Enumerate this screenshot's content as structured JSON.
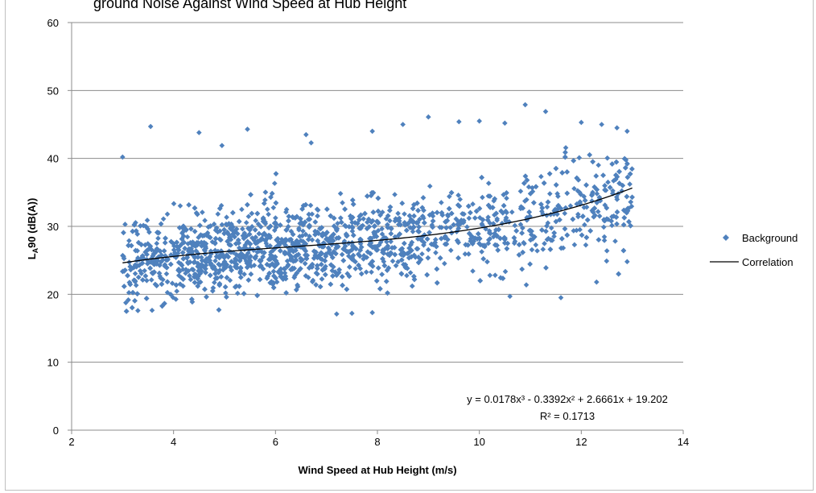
{
  "chart_data": {
    "type": "scatter",
    "title_fragment": "ground Noise Against Wind Speed at Hub Height",
    "xlabel": "Wind Speed at Hub Height (m/s)",
    "ylabel": {
      "main": "L",
      "sub": "A",
      "rest": "90 (dB(A))"
    },
    "xlim": [
      2,
      14
    ],
    "ylim": [
      0,
      60
    ],
    "x_ticks": [
      "2",
      "4",
      "6",
      "8",
      "10",
      "12",
      "14"
    ],
    "y_ticks": [
      "0",
      "10",
      "20",
      "30",
      "40",
      "50",
      "60"
    ],
    "grid": "horizontal",
    "legend_position": "right",
    "series": [
      {
        "name": "Background",
        "kind": "scatter",
        "marker": "diamond",
        "color": "#4f81bd",
        "x_range": [
          3,
          13
        ],
        "approx_point_count": 3000,
        "sample_points": [
          [
            3.0,
            40.2
          ],
          [
            3.55,
            44.7
          ],
          [
            4.5,
            43.8
          ],
          [
            5.45,
            44.3
          ],
          [
            4.95,
            41.9
          ],
          [
            6.7,
            42.3
          ],
          [
            6.6,
            43.5
          ],
          [
            7.9,
            44.0
          ],
          [
            8.5,
            45.0
          ],
          [
            9.0,
            46.1
          ],
          [
            9.6,
            45.4
          ],
          [
            10.0,
            45.5
          ],
          [
            10.5,
            45.2
          ],
          [
            10.9,
            47.9
          ],
          [
            11.3,
            46.9
          ],
          [
            12.0,
            45.3
          ],
          [
            12.4,
            45.0
          ],
          [
            12.7,
            44.5
          ],
          [
            12.9,
            44.0
          ],
          [
            7.2,
            17.1
          ],
          [
            7.5,
            17.2
          ],
          [
            7.9,
            17.3
          ],
          [
            3.3,
            17.6
          ],
          [
            10.6,
            19.7
          ],
          [
            11.6,
            19.5
          ],
          [
            12.3,
            21.8
          ],
          [
            12.9,
            24.8
          ]
        ]
      },
      {
        "name": "Correlation",
        "kind": "line",
        "color": "#000000",
        "x_range": [
          3,
          13
        ],
        "coefficients": [
          0.0178,
          -0.3392,
          2.6661,
          19.202
        ]
      }
    ],
    "annotations": {
      "equation": "y = 0.0178x³ - 0.3392x² + 2.6661x + 19.202",
      "r_squared": "R² = 0.1713"
    }
  }
}
